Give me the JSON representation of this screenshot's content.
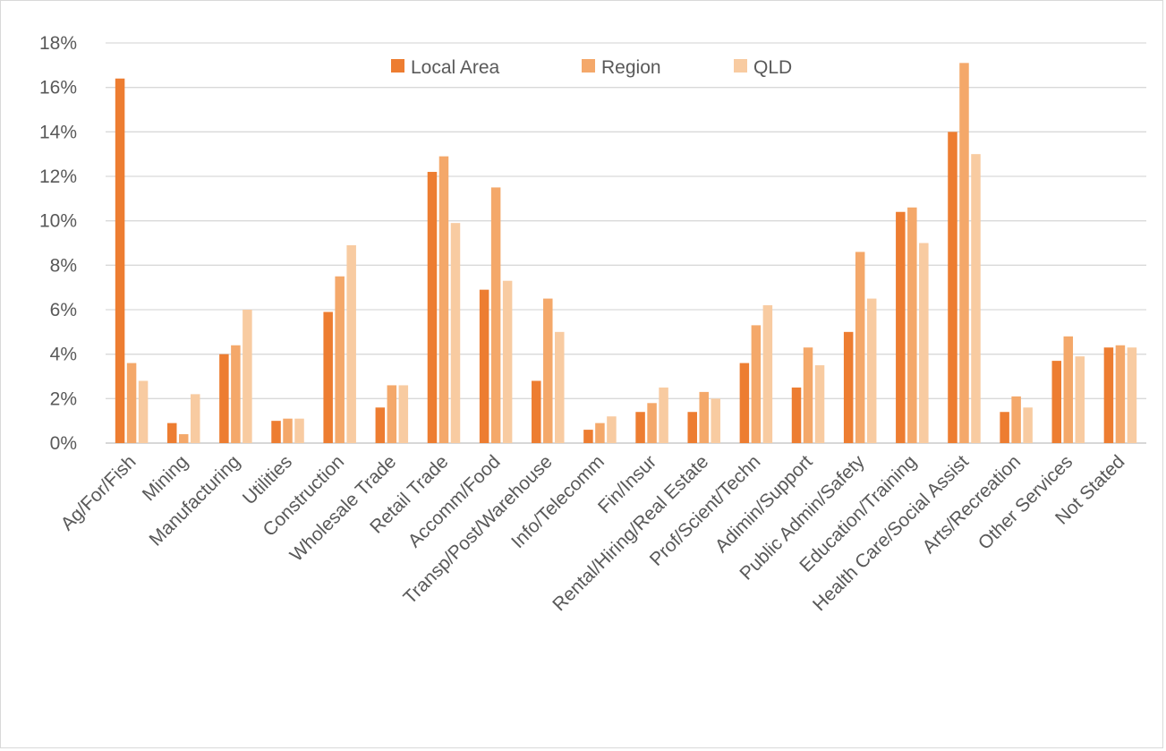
{
  "chart_data": {
    "type": "bar",
    "title": "",
    "xlabel": "",
    "ylabel": "",
    "ylim": [
      0,
      18
    ],
    "yticks": [
      "0%",
      "2%",
      "4%",
      "6%",
      "8%",
      "10%",
      "12%",
      "14%",
      "16%",
      "18%"
    ],
    "grid": true,
    "legend_position": "top",
    "categories": [
      "Ag/For/Fish",
      "Mining",
      "Manufacturing",
      "Utilities",
      "Construction",
      "Wholesale Trade",
      "Retail Trade",
      "Accomm/Food",
      "Transp/Post/Warehouse",
      "Info/Telecomm",
      "Fin/Insur",
      "Rental/Hiring/Real Estate",
      "Prof/Scient/Techn",
      "Adimin/Support",
      "Public Admin/Safety",
      "Education/Training",
      "Health Care/Social Assist",
      "Arts/Recreation",
      "Other Services",
      "Not Stated"
    ],
    "series": [
      {
        "name": "Local Area",
        "color": "#ed7d31",
        "values": [
          16.4,
          0.9,
          4.0,
          1.0,
          5.9,
          1.6,
          12.2,
          6.9,
          2.8,
          0.6,
          1.4,
          1.4,
          3.6,
          2.5,
          5.0,
          10.4,
          14.0,
          1.4,
          3.7,
          4.3
        ]
      },
      {
        "name": "Region",
        "color": "#f4a86a",
        "values": [
          3.6,
          0.4,
          4.4,
          1.1,
          7.5,
          2.6,
          12.9,
          11.5,
          6.5,
          0.9,
          1.8,
          2.3,
          5.3,
          4.3,
          8.6,
          10.6,
          17.1,
          2.1,
          4.8,
          4.4
        ]
      },
      {
        "name": "QLD",
        "color": "#f8cba1",
        "values": [
          2.8,
          2.2,
          6.0,
          1.1,
          8.9,
          2.6,
          9.9,
          7.3,
          5.0,
          1.2,
          2.5,
          2.0,
          6.2,
          3.5,
          6.5,
          9.0,
          13.0,
          1.6,
          3.9,
          4.3
        ]
      }
    ]
  }
}
